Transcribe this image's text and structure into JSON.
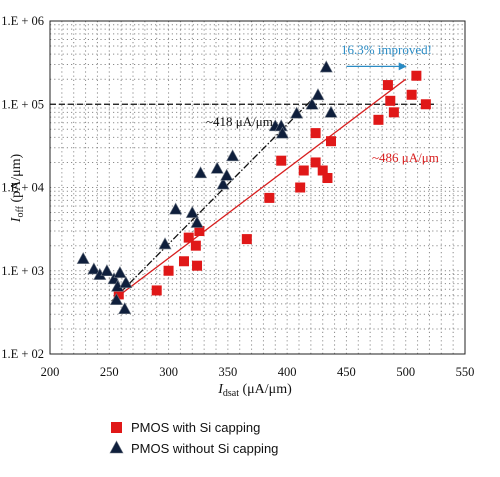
{
  "colors": {
    "red_series": "#e01818",
    "navy_series": "#0f1f3c",
    "blue_annotation": "#2a8bc4",
    "red_line": "#d81e1e"
  },
  "chart_data": {
    "type": "scatter",
    "xlabel": {
      "main": "I",
      "sub": "dsat",
      "units": " (μA/μm)"
    },
    "ylabel": {
      "main": "I",
      "sub": "off",
      "units": " (pA/μm)"
    },
    "xlim": [
      200,
      550
    ],
    "ylim_log10": [
      2,
      6
    ],
    "x_ticks": [
      "200",
      "250",
      "300",
      "350",
      "400",
      "450",
      "500",
      "550"
    ],
    "y_ticks": [
      "1.E + 02",
      "1.E + 03",
      "1.E + 04",
      "1.E + 05",
      "1.E + 06"
    ],
    "grid": "dotted",
    "legend_position": "bottom",
    "series": [
      {
        "name": "PMOS with Si capping",
        "marker": "square",
        "points": [
          [
            258,
            520
          ],
          [
            290,
            580
          ],
          [
            300,
            1000
          ],
          [
            313,
            1300
          ],
          [
            317,
            2500
          ],
          [
            323,
            2000
          ],
          [
            324,
            1150
          ],
          [
            326,
            3000
          ],
          [
            366,
            2400
          ],
          [
            385,
            7500
          ],
          [
            395,
            21000
          ],
          [
            411,
            10000
          ],
          [
            414,
            16000
          ],
          [
            424,
            20000
          ],
          [
            424,
            45000
          ],
          [
            430,
            16000
          ],
          [
            434,
            13000
          ],
          [
            437,
            36000
          ],
          [
            477,
            65000
          ],
          [
            485,
            170000
          ],
          [
            487,
            110000
          ],
          [
            490,
            80000
          ],
          [
            505,
            130000
          ],
          [
            509,
            220000
          ],
          [
            517,
            100000
          ]
        ],
        "fit_line": {
          "from": [
            258,
            500
          ],
          "to": [
            500,
            200000
          ]
        }
      },
      {
        "name": "PMOS without Si capping",
        "marker": "triangle",
        "points": [
          [
            228,
            1400
          ],
          [
            237,
            1050
          ],
          [
            242,
            900
          ],
          [
            248,
            1000
          ],
          [
            254,
            800
          ],
          [
            256,
            450
          ],
          [
            257,
            650
          ],
          [
            259,
            950
          ],
          [
            263,
            350
          ],
          [
            264,
            720
          ],
          [
            297,
            2100
          ],
          [
            306,
            5500
          ],
          [
            320,
            5000
          ],
          [
            324,
            3800
          ],
          [
            327,
            15000
          ],
          [
            341,
            17000
          ],
          [
            346,
            11000
          ],
          [
            349,
            14000
          ],
          [
            354,
            24000
          ],
          [
            390,
            55000
          ],
          [
            395,
            55000
          ],
          [
            396,
            45000
          ],
          [
            408,
            78000
          ],
          [
            421,
            100000
          ],
          [
            426,
            130000
          ],
          [
            433,
            280000
          ],
          [
            437,
            80000
          ]
        ],
        "fit_line": {
          "from": [
            252,
            430
          ],
          "to": [
            425,
            130000
          ]
        }
      }
    ],
    "reference_line": {
      "y": 100000,
      "x_from": 200,
      "x_to": 525,
      "style": "dashed"
    },
    "annotations": {
      "navy_slope": "~418 μA/μm",
      "red_slope": "~486 μA/μm",
      "improvement": "16.3% improved!"
    },
    "improvement_arrow": {
      "from": [
        450,
        285000
      ],
      "to": [
        500,
        285000
      ]
    }
  }
}
